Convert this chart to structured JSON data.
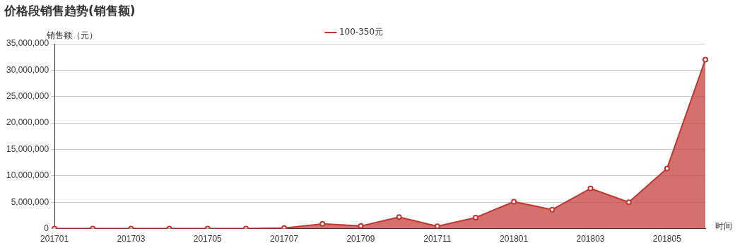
{
  "chart_data": {
    "type": "area",
    "title": "价格段销售趋势(销售额)",
    "xlabel": "时间",
    "ylabel": "销售额（元）",
    "categories": [
      "201701",
      null,
      "201703",
      null,
      "201705",
      null,
      "201707",
      null,
      "201709",
      null,
      "201711",
      null,
      "201801",
      null,
      "201803",
      null,
      "201805",
      null
    ],
    "series": [
      {
        "name": "100-350元",
        "color": "#c23531",
        "values": [
          0,
          0,
          0,
          0,
          0,
          0,
          100000,
          900000,
          500000,
          2200000,
          460000,
          2100000,
          5100000,
          3600000,
          7600000,
          5000000,
          11400000,
          32000000
        ]
      }
    ],
    "ylim": [
      0,
      35000000
    ],
    "yticks": [
      0,
      {
        "value": 5000000,
        "label": "5,000,000"
      },
      {
        "value": 10000000,
        "label": "10,000,000"
      },
      {
        "value": 15000000,
        "label": "15,000,000"
      },
      {
        "value": 20000000,
        "label": "20,000,000"
      },
      {
        "value": 25000000,
        "label": "25,000,000"
      },
      {
        "value": 30000000,
        "label": "30,000,000"
      },
      {
        "value": 35000000,
        "label": "35,000,000"
      }
    ],
    "grid": "y",
    "legend": "top",
    "marker": "circle"
  }
}
